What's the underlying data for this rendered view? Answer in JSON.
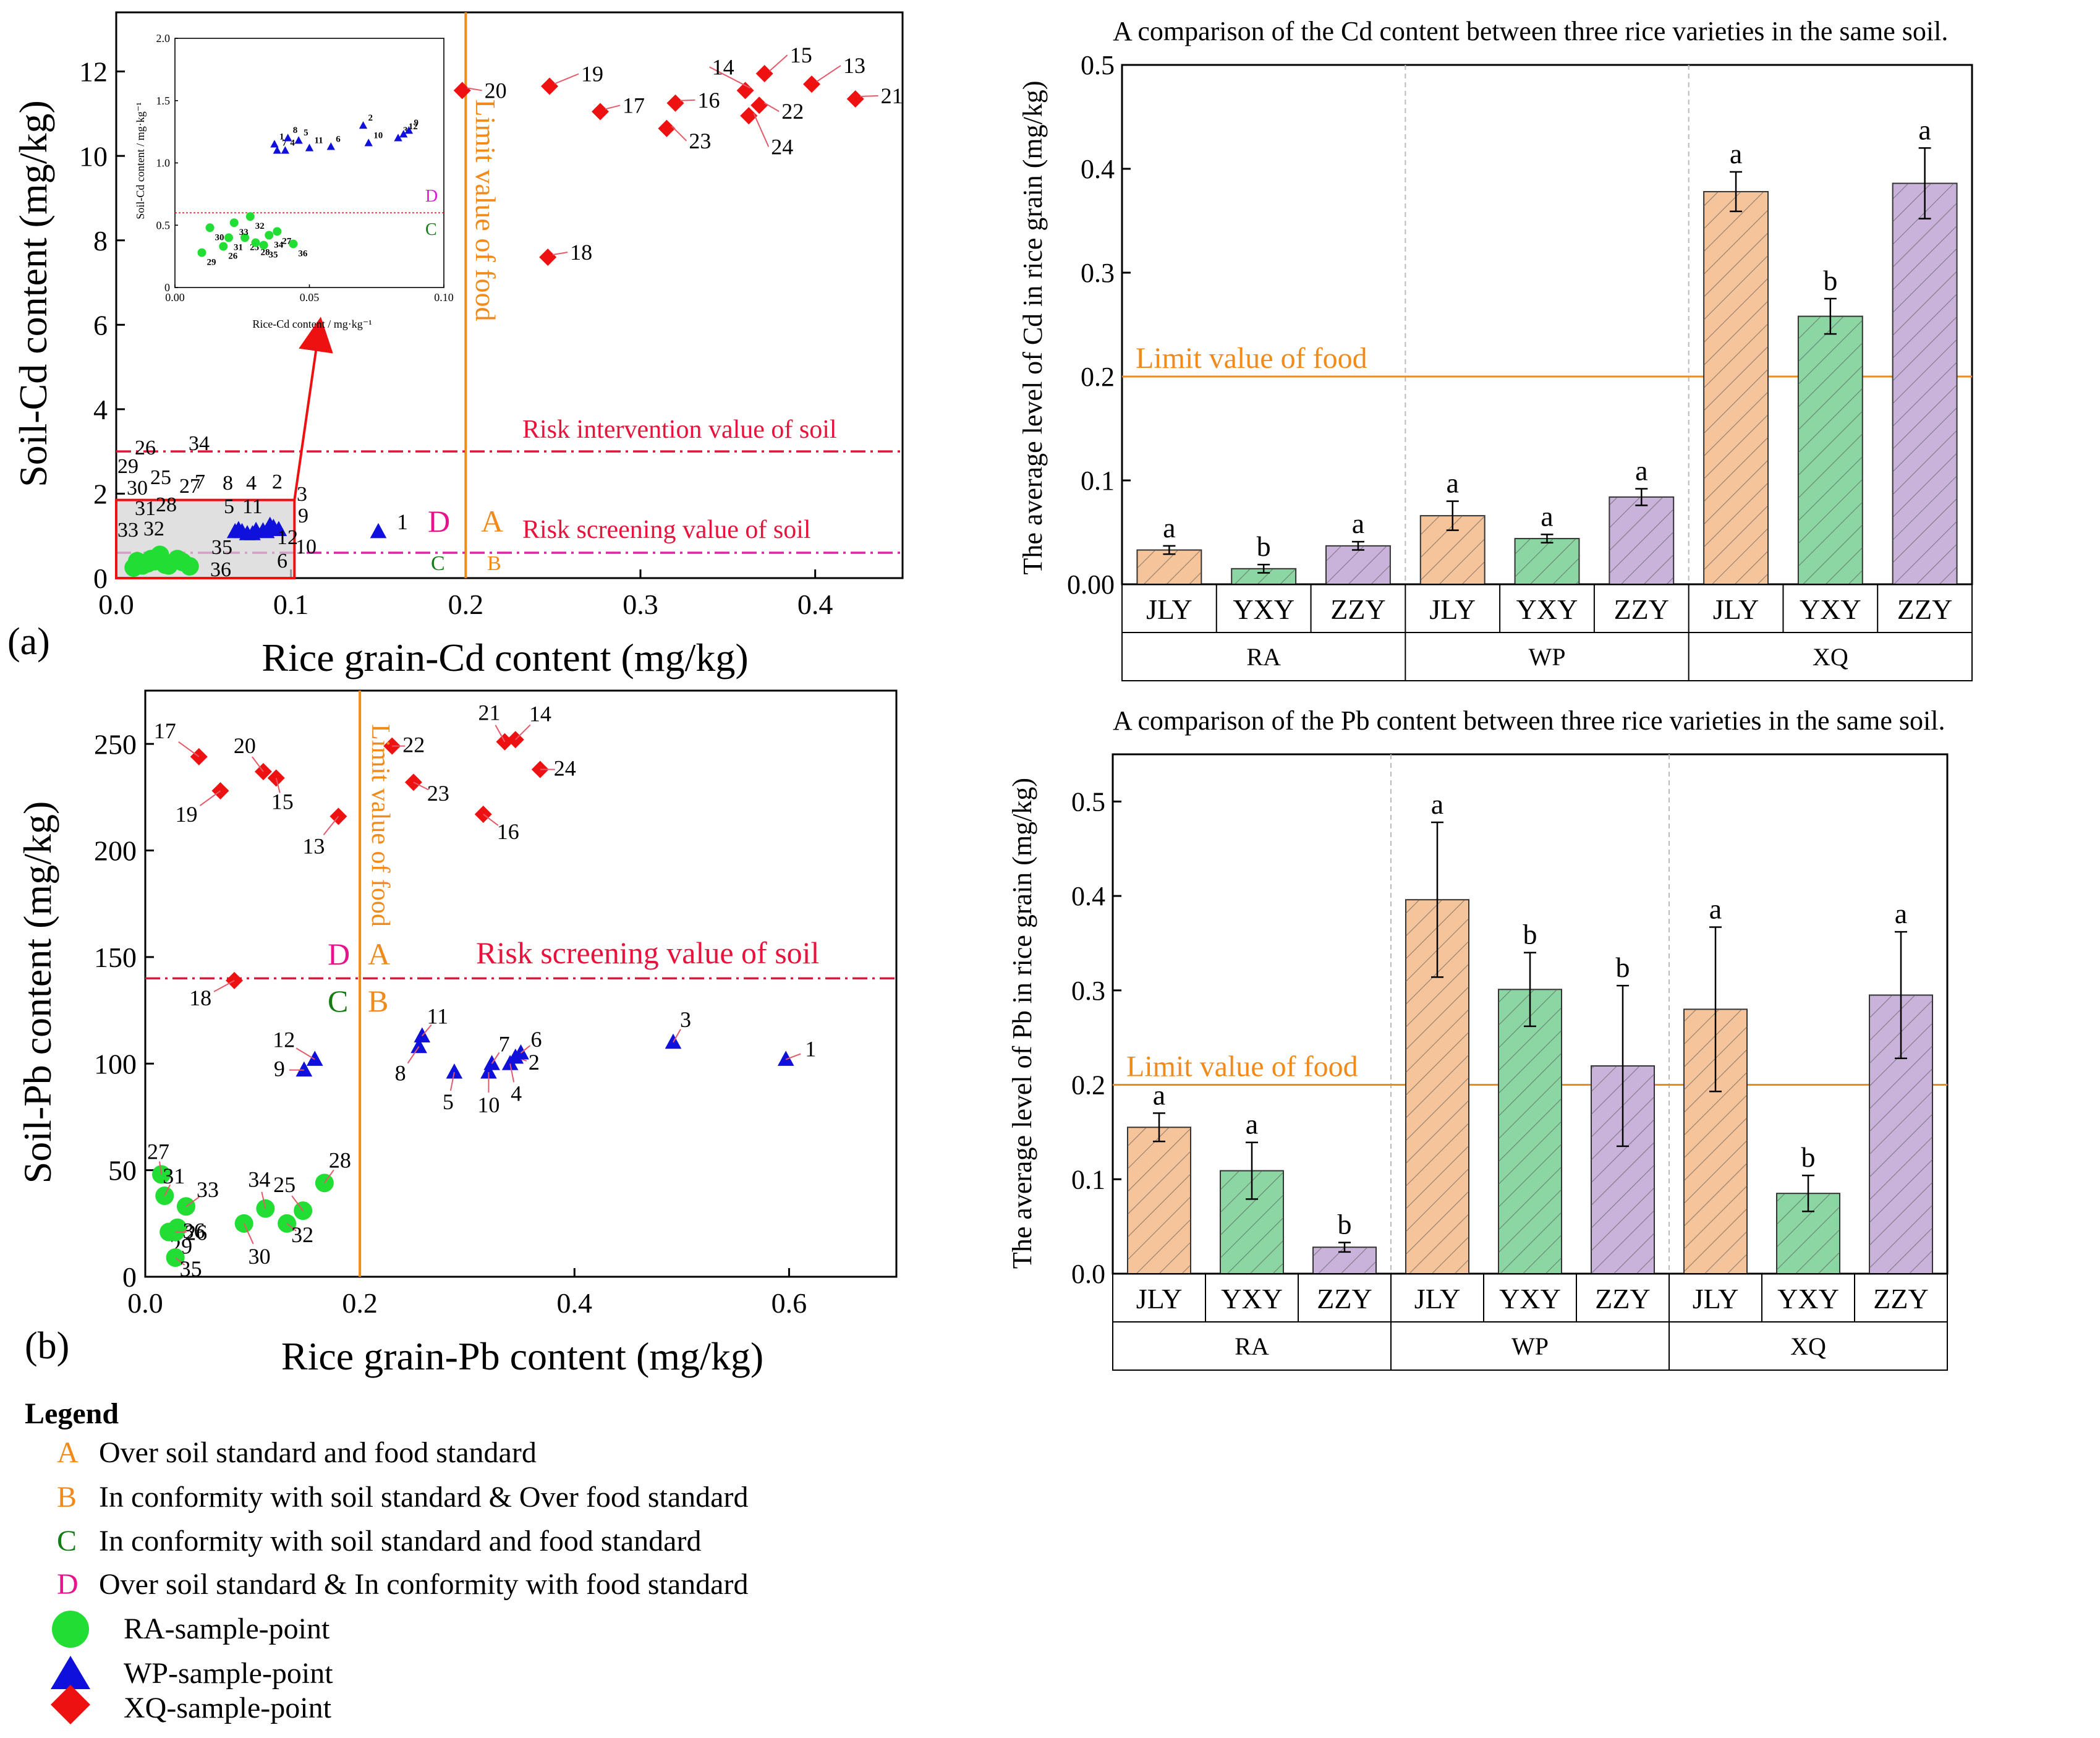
{
  "colors": {
    "ra": "#22dd33",
    "wp": "#1010dd",
    "xq": "#ee1111",
    "food_limit": "#f28a1a",
    "risk": "#e8123c",
    "screen_cd": "#dd22aa",
    "A": "#f28a1a",
    "B": "#f28a1a",
    "C": "#137d13",
    "D": "#e8128c",
    "bar_jly": "#f6c49a",
    "bar_yxy": "#8bd6a2",
    "bar_zzy": "#c9b3db",
    "inset_sep": "#ee1111",
    "inset_D": "#d81ecb"
  },
  "panel_a": {
    "panel_label": "(a)",
    "food_limit_label": "Limit value of food",
    "risk_intervention_label": "Risk intervention value of soil",
    "risk_screening_label": "Risk screening value of soil",
    "region_A": "A",
    "region_B": "B",
    "region_C": "C",
    "region_D": "D"
  },
  "panel_b": {
    "panel_label": "(b)",
    "food_limit_label": "Limit value of food",
    "risk_screening_label": "Risk screening value of soil",
    "region_A": "A",
    "region_B": "B",
    "region_C": "C",
    "region_D": "D"
  },
  "inset": {
    "xlabel": "Rice-Cd content / mg·kg⁻¹",
    "ylabel": "Soil-Cd content / mg·kg⁻¹",
    "D": "D",
    "C": "C",
    "xticks": [
      "0.00",
      "0.05",
      "0.10"
    ],
    "yticks": [
      "0",
      "0.5",
      "1.0",
      "1.5",
      "2.0"
    ]
  },
  "legend": {
    "title": "Legend",
    "items": [
      {
        "key": "A",
        "text": "Over soil standard and food standard"
      },
      {
        "key": "B",
        "text": "In conformity with soil standard & Over food standard"
      },
      {
        "key": "C",
        "text": "In conformity with soil standard and food standard"
      },
      {
        "key": "D",
        "text": "Over soil standard & In conformity with food standard"
      }
    ],
    "markers": [
      {
        "shape": "circle",
        "text": "RA-sample-point"
      },
      {
        "shape": "triangle",
        "text": "WP-sample-point"
      },
      {
        "shape": "diamond",
        "text": "XQ-sample-point"
      }
    ]
  },
  "chart_data": [
    {
      "id": "scatter-cd",
      "type": "scatter",
      "title": "",
      "xlabel": "Rice grain-Cd content (mg/kg)",
      "ylabel": "Soil-Cd content (mg/kg)",
      "xlim": [
        0,
        0.45
      ],
      "ylim": [
        0,
        13.4
      ],
      "xticks": [
        0.0,
        0.1,
        0.2,
        0.3,
        0.4
      ],
      "xtick_labels": [
        "0.0",
        "0.1",
        "0.2",
        "0.3",
        "0.4"
      ],
      "yticks": [
        0,
        2,
        4,
        6,
        8,
        10,
        12
      ],
      "ytick_labels": [
        "0",
        "2",
        "4",
        "6",
        "8",
        "10",
        "12"
      ],
      "reference_lines": {
        "food_limit_x": 0.2,
        "risk_intervention_y": 3.0,
        "risk_screening_y": 0.6
      },
      "series": [
        {
          "name": "XQ",
          "marker": "diamond",
          "points": [
            {
              "id": "13",
              "x": 0.398,
              "y": 11.7
            },
            {
              "id": "14",
              "x": 0.36,
              "y": 11.55
            },
            {
              "id": "15",
              "x": 0.371,
              "y": 11.95
            },
            {
              "id": "16",
              "x": 0.32,
              "y": 11.25
            },
            {
              "id": "17",
              "x": 0.277,
              "y": 11.05
            },
            {
              "id": "18",
              "x": 0.247,
              "y": 7.6
            },
            {
              "id": "19",
              "x": 0.248,
              "y": 11.65
            },
            {
              "id": "20",
              "x": 0.198,
              "y": 11.55
            },
            {
              "id": "21",
              "x": 0.423,
              "y": 11.35
            },
            {
              "id": "22",
              "x": 0.368,
              "y": 11.2
            },
            {
              "id": "23",
              "x": 0.315,
              "y": 10.65
            },
            {
              "id": "24",
              "x": 0.362,
              "y": 10.95
            }
          ]
        },
        {
          "name": "WP",
          "marker": "triangle",
          "points": [
            {
              "id": "1",
              "x": 0.15,
              "y": 1.1
            },
            {
              "id": "2",
              "x": 0.088,
              "y": 1.25
            },
            {
              "id": "3",
              "x": 0.093,
              "y": 1.15
            },
            {
              "id": "4",
              "x": 0.078,
              "y": 1.05
            },
            {
              "id": "5",
              "x": 0.072,
              "y": 1.1
            },
            {
              "id": "6",
              "x": 0.075,
              "y": 1.05
            },
            {
              "id": "7",
              "x": 0.068,
              "y": 1.1
            },
            {
              "id": "8",
              "x": 0.07,
              "y": 1.15
            },
            {
              "id": "9",
              "x": 0.09,
              "y": 1.2
            },
            {
              "id": "10",
              "x": 0.084,
              "y": 1.12
            },
            {
              "id": "11",
              "x": 0.08,
              "y": 1.13
            },
            {
              "id": "12",
              "x": 0.086,
              "y": 1.1
            }
          ]
        },
        {
          "name": "RA",
          "marker": "circle",
          "points": [
            {
              "id": "25",
              "x": 0.022,
              "y": 0.4
            },
            {
              "id": "26",
              "x": 0.015,
              "y": 0.3
            },
            {
              "id": "27",
              "x": 0.035,
              "y": 0.45
            },
            {
              "id": "28",
              "x": 0.03,
              "y": 0.3
            },
            {
              "id": "29",
              "x": 0.01,
              "y": 0.25
            },
            {
              "id": "30",
              "x": 0.012,
              "y": 0.4
            },
            {
              "id": "31",
              "x": 0.018,
              "y": 0.35
            },
            {
              "id": "32",
              "x": 0.025,
              "y": 0.55
            },
            {
              "id": "33",
              "x": 0.02,
              "y": 0.45
            },
            {
              "id": "34",
              "x": 0.038,
              "y": 0.38
            },
            {
              "id": "35",
              "x": 0.028,
              "y": 0.32
            },
            {
              "id": "36",
              "x": 0.042,
              "y": 0.28
            }
          ]
        }
      ]
    },
    {
      "id": "scatter-pb",
      "type": "scatter",
      "title": "",
      "xlabel": "Rice grain-Pb content (mg/kg)",
      "ylabel": "Soil-Pb content (mg/kg)",
      "xlim": [
        0,
        0.7
      ],
      "ylim": [
        0,
        275
      ],
      "xticks": [
        0.0,
        0.2,
        0.4,
        0.6
      ],
      "xtick_labels": [
        "0.0",
        "0.2",
        "0.4",
        "0.6"
      ],
      "yticks": [
        0,
        50,
        100,
        150,
        200,
        250
      ],
      "ytick_labels": [
        "0",
        "50",
        "100",
        "150",
        "200",
        "250"
      ],
      "reference_lines": {
        "food_limit_x": 0.2,
        "risk_screening_y": 140
      },
      "series": [
        {
          "name": "XQ",
          "marker": "diamond",
          "points": [
            {
              "id": "13",
              "x": 0.18,
              "y": 216
            },
            {
              "id": "14",
              "x": 0.345,
              "y": 252
            },
            {
              "id": "15",
              "x": 0.122,
              "y": 234
            },
            {
              "id": "16",
              "x": 0.315,
              "y": 217
            },
            {
              "id": "17",
              "x": 0.05,
              "y": 244
            },
            {
              "id": "18",
              "x": 0.083,
              "y": 139
            },
            {
              "id": "19",
              "x": 0.07,
              "y": 228
            },
            {
              "id": "20",
              "x": 0.11,
              "y": 237
            },
            {
              "id": "21",
              "x": 0.335,
              "y": 251
            },
            {
              "id": "22",
              "x": 0.23,
              "y": 249
            },
            {
              "id": "23",
              "x": 0.25,
              "y": 232
            },
            {
              "id": "24",
              "x": 0.368,
              "y": 238
            }
          ]
        },
        {
          "name": "WP",
          "marker": "triangle",
          "points": [
            {
              "id": "1",
              "x": 0.597,
              "y": 102
            },
            {
              "id": "2",
              "x": 0.345,
              "y": 103
            },
            {
              "id": "3",
              "x": 0.492,
              "y": 110
            },
            {
              "id": "4",
              "x": 0.34,
              "y": 100
            },
            {
              "id": "5",
              "x": 0.288,
              "y": 96
            },
            {
              "id": "6",
              "x": 0.35,
              "y": 105
            },
            {
              "id": "7",
              "x": 0.323,
              "y": 100
            },
            {
              "id": "8",
              "x": 0.255,
              "y": 108
            },
            {
              "id": "9",
              "x": 0.148,
              "y": 97
            },
            {
              "id": "10",
              "x": 0.32,
              "y": 96
            },
            {
              "id": "11",
              "x": 0.258,
              "y": 113
            },
            {
              "id": "12",
              "x": 0.158,
              "y": 102
            }
          ]
        },
        {
          "name": "RA",
          "marker": "circle",
          "points": [
            {
              "id": "25",
              "x": 0.147,
              "y": 31
            },
            {
              "id": "26",
              "x": 0.03,
              "y": 23
            },
            {
              "id": "27",
              "x": 0.015,
              "y": 48
            },
            {
              "id": "28",
              "x": 0.167,
              "y": 44
            },
            {
              "id": "29",
              "x": 0.022,
              "y": 21
            },
            {
              "id": "30",
              "x": 0.092,
              "y": 25
            },
            {
              "id": "31",
              "x": 0.018,
              "y": 38
            },
            {
              "id": "32",
              "x": 0.132,
              "y": 25
            },
            {
              "id": "33",
              "x": 0.038,
              "y": 33
            },
            {
              "id": "34",
              "x": 0.112,
              "y": 32
            },
            {
              "id": "35",
              "x": 0.028,
              "y": 9
            },
            {
              "id": "36",
              "x": 0.028,
              "y": 21
            }
          ]
        }
      ]
    },
    {
      "id": "inset-cd",
      "type": "scatter",
      "title": "",
      "xlabel": "Rice-Cd content / mg·kg⁻¹",
      "ylabel": "Soil-Cd content / mg·kg⁻¹",
      "xlim": [
        0,
        0.1
      ],
      "ylim": [
        0,
        2.0
      ],
      "reference_lines": {
        "risk_screening_y": 0.6
      },
      "series": [
        {
          "name": "WP",
          "marker": "triangle",
          "points": [
            {
              "id": "1",
              "x": 0.037,
              "y": 1.15
            },
            {
              "id": "2",
              "x": 0.07,
              "y": 1.3
            },
            {
              "id": "3",
              "x": 0.083,
              "y": 1.2
            },
            {
              "id": "4",
              "x": 0.041,
              "y": 1.1
            },
            {
              "id": "5",
              "x": 0.046,
              "y": 1.18
            },
            {
              "id": "6",
              "x": 0.058,
              "y": 1.13
            },
            {
              "id": "7",
              "x": 0.038,
              "y": 1.1
            },
            {
              "id": "8",
              "x": 0.042,
              "y": 1.2
            },
            {
              "id": "9",
              "x": 0.087,
              "y": 1.26
            },
            {
              "id": "10",
              "x": 0.072,
              "y": 1.16
            },
            {
              "id": "11",
              "x": 0.05,
              "y": 1.12
            },
            {
              "id": "12",
              "x": 0.085,
              "y": 1.23
            }
          ]
        },
        {
          "name": "RA",
          "marker": "circle",
          "points": [
            {
              "id": "25",
              "x": 0.026,
              "y": 0.4
            },
            {
              "id": "26",
              "x": 0.018,
              "y": 0.33
            },
            {
              "id": "27",
              "x": 0.038,
              "y": 0.45
            },
            {
              "id": "28",
              "x": 0.03,
              "y": 0.36
            },
            {
              "id": "29",
              "x": 0.01,
              "y": 0.28
            },
            {
              "id": "30",
              "x": 0.013,
              "y": 0.48
            },
            {
              "id": "31",
              "x": 0.02,
              "y": 0.4
            },
            {
              "id": "32",
              "x": 0.028,
              "y": 0.57
            },
            {
              "id": "33",
              "x": 0.022,
              "y": 0.52
            },
            {
              "id": "34",
              "x": 0.035,
              "y": 0.42
            },
            {
              "id": "35",
              "x": 0.033,
              "y": 0.34
            },
            {
              "id": "36",
              "x": 0.044,
              "y": 0.35
            }
          ]
        }
      ]
    },
    {
      "id": "bar-cd",
      "type": "bar",
      "title": "A comparison of the Cd content between three rice varieties in the same soil.",
      "xlabel": "",
      "ylabel": "The average level of Cd in rice grain (mg/kg)",
      "ylim": [
        0,
        0.5
      ],
      "yticks": [
        0.0,
        0.1,
        0.2,
        0.3,
        0.4,
        0.5
      ],
      "ytick_labels": [
        "0.00",
        "0.1",
        "0.2",
        "0.3",
        "0.4",
        "0.5"
      ],
      "limit": 0.2,
      "limit_label": "Limit value of food",
      "groups": [
        "RA",
        "WP",
        "XQ"
      ],
      "categories": [
        "JLY",
        "YXY",
        "ZZY"
      ],
      "bars": [
        {
          "group": "RA",
          "variety": "JLY",
          "value": 0.033,
          "err": 0.004,
          "sig": "a"
        },
        {
          "group": "RA",
          "variety": "YXY",
          "value": 0.015,
          "err": 0.004,
          "sig": "b"
        },
        {
          "group": "RA",
          "variety": "ZZY",
          "value": 0.037,
          "err": 0.004,
          "sig": "a"
        },
        {
          "group": "WP",
          "variety": "JLY",
          "value": 0.066,
          "err": 0.014,
          "sig": "a"
        },
        {
          "group": "WP",
          "variety": "YXY",
          "value": 0.044,
          "err": 0.004,
          "sig": "a"
        },
        {
          "group": "WP",
          "variety": "ZZY",
          "value": 0.084,
          "err": 0.008,
          "sig": "a"
        },
        {
          "group": "XQ",
          "variety": "JLY",
          "value": 0.378,
          "err": 0.019,
          "sig": "a"
        },
        {
          "group": "XQ",
          "variety": "YXY",
          "value": 0.258,
          "err": 0.017,
          "sig": "b"
        },
        {
          "group": "XQ",
          "variety": "ZZY",
          "value": 0.386,
          "err": 0.034,
          "sig": "a"
        }
      ]
    },
    {
      "id": "bar-pb",
      "type": "bar",
      "title": "A comparison of the Pb content between three rice varieties in the same soil.",
      "xlabel": "",
      "ylabel": "The average level of Pb in rice grain (mg/kg)",
      "ylim": [
        0,
        0.55
      ],
      "yticks": [
        0.0,
        0.1,
        0.2,
        0.3,
        0.4,
        0.5
      ],
      "ytick_labels": [
        "0.0",
        "0.1",
        "0.2",
        "0.3",
        "0.4",
        "0.5"
      ],
      "limit": 0.2,
      "limit_label": "Limit value of food",
      "groups": [
        "RA",
        "WP",
        "XQ"
      ],
      "categories": [
        "JLY",
        "YXY",
        "ZZY"
      ],
      "bars": [
        {
          "group": "RA",
          "variety": "JLY",
          "value": 0.155,
          "err": 0.015,
          "sig": "a"
        },
        {
          "group": "RA",
          "variety": "YXY",
          "value": 0.109,
          "err": 0.03,
          "sig": "a"
        },
        {
          "group": "RA",
          "variety": "ZZY",
          "value": 0.028,
          "err": 0.005,
          "sig": "b"
        },
        {
          "group": "WP",
          "variety": "JLY",
          "value": 0.396,
          "err": 0.082,
          "sig": "a"
        },
        {
          "group": "WP",
          "variety": "YXY",
          "value": 0.301,
          "err": 0.039,
          "sig": "b"
        },
        {
          "group": "WP",
          "variety": "ZZY",
          "value": 0.22,
          "err": 0.085,
          "sig": "b"
        },
        {
          "group": "XQ",
          "variety": "JLY",
          "value": 0.28,
          "err": 0.087,
          "sig": "a"
        },
        {
          "group": "XQ",
          "variety": "YXY",
          "value": 0.085,
          "err": 0.019,
          "sig": "b"
        },
        {
          "group": "XQ",
          "variety": "ZZY",
          "value": 0.295,
          "err": 0.067,
          "sig": "a"
        }
      ]
    }
  ]
}
